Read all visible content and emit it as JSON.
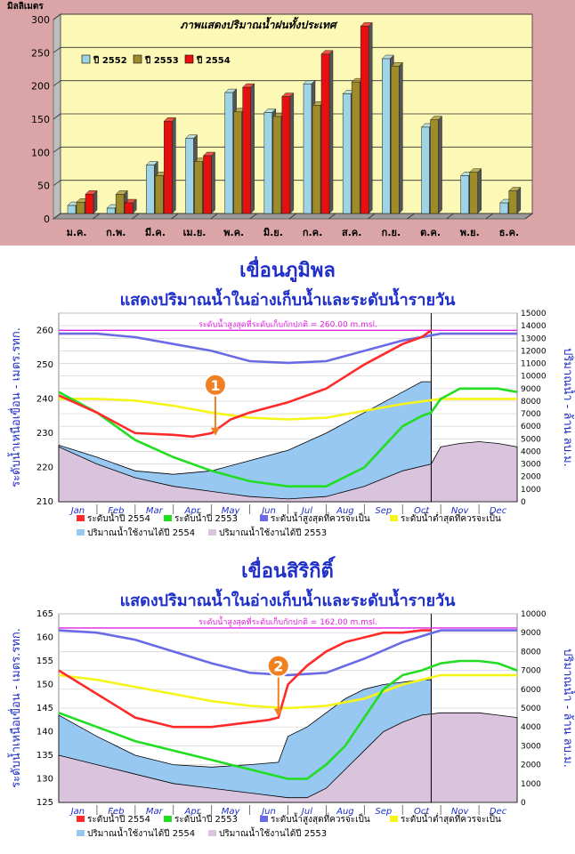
{
  "chart_data": [
    {
      "type": "bar",
      "title": "ภาพแสดงปริมาณน้ำฝนทั้งประเทศ",
      "ylabel": "มิลลิเมตร",
      "ylim": [
        0,
        300
      ],
      "yticks": [
        0,
        50,
        100,
        150,
        200,
        250,
        300
      ],
      "categories": [
        "ม.ค.",
        "ก.พ.",
        "มี.ค.",
        "เม.ย.",
        "พ.ค.",
        "มิ.ย.",
        "ก.ค.",
        "ส.ค.",
        "ก.ย.",
        "ต.ค.",
        "พ.ย.",
        "ธ.ค."
      ],
      "legend_position": "top-left",
      "series": [
        {
          "name": "ปี 2552",
          "color": "#9ed4e6",
          "values": [
            12,
            8,
            73,
            113,
            182,
            152,
            195,
            180,
            233,
            130,
            57,
            16
          ]
        },
        {
          "name": "ปี 2553",
          "color": "#9e8c2a",
          "values": [
            17,
            29,
            57,
            78,
            153,
            146,
            163,
            198,
            222,
            141,
            62,
            34
          ]
        },
        {
          "name": "ปี 2554",
          "color": "#e80f0f",
          "values": [
            29,
            16,
            139,
            87,
            190,
            176,
            240,
            282,
            null,
            null,
            null,
            null
          ]
        }
      ],
      "colors": {
        "plot_bg": "#fcf8b6",
        "page_bg": "#dba5a7"
      }
    },
    {
      "type": "line",
      "dam_name": "เขื่อนภูมิพล",
      "subtitle": "แสดงปริมาณน้ำในอ่างเก็บน้ำและระดับน้ำรายวัน",
      "ylabel_left": "ระดับน้ำเหนือเขื่อน - เมตร.รทก.",
      "ylabel_right": "ปริมาณน้ำ - ล้าน ลบ.ม.",
      "ylim_left": [
        210,
        265
      ],
      "yticks_left": [
        210,
        220,
        230,
        240,
        250,
        260
      ],
      "ylim_right": [
        0,
        15000
      ],
      "yticks_right": [
        0,
        1000,
        2000,
        3000,
        4000,
        5000,
        6000,
        7000,
        8000,
        9000,
        10000,
        11000,
        12000,
        13000,
        14000,
        15000
      ],
      "months": [
        "Jan",
        "Feb",
        "Mar",
        "Apr",
        "May",
        "Jun",
        "Jul",
        "Aug",
        "Sep",
        "Oct",
        "Nov",
        "Dec"
      ],
      "current_marker_month": 9.75,
      "max_line": {
        "value": 260,
        "label": "ระดับน้ำสูงสุดที่ระดับเก็บกักปกติ = 260.00 m.msl."
      },
      "annotation": {
        "label": "1",
        "x": 4.1,
        "y": 229
      },
      "series": [
        {
          "name": "ระดับน้ำปี 2554",
          "color": "#ff2a2a",
          "x": [
            0,
            1,
            2,
            3,
            3.5,
            4,
            4.5,
            5,
            6,
            7,
            8,
            9,
            9.5,
            9.75
          ],
          "y": [
            241,
            236,
            230,
            229.5,
            229,
            230,
            234,
            236,
            239,
            243,
            250,
            256,
            258,
            260
          ]
        },
        {
          "name": "ระดับน้ำปี 2553",
          "color": "#22dd22",
          "x": [
            0,
            1,
            2,
            3,
            4,
            5,
            6,
            7,
            8,
            8.5,
            9,
            9.5,
            9.75,
            10,
            10.5,
            11,
            11.5,
            12
          ],
          "y": [
            242,
            236,
            228,
            223,
            219,
            216,
            214.5,
            214.5,
            220,
            226,
            232,
            235,
            236,
            240,
            243,
            243,
            243,
            242
          ]
        },
        {
          "name": "ระดับน้ำสูงสุดที่ควรจะเป็น",
          "color": "#6a6ae6",
          "x": [
            0,
            1,
            2,
            3,
            4,
            5,
            6,
            7,
            8,
            9,
            10,
            11,
            12
          ],
          "y": [
            259,
            259,
            258,
            256,
            254,
            251,
            250.5,
            251,
            254,
            257,
            259,
            259,
            259
          ]
        },
        {
          "name": "ระดับน้ำต่ำสุดที่ควรจะเป็น",
          "color": "#f5f51a",
          "x": [
            0,
            1,
            2,
            3,
            4,
            5,
            6,
            7,
            8,
            9,
            10,
            11,
            12
          ],
          "y": [
            240,
            240,
            239.5,
            238,
            236,
            234.5,
            234,
            234.5,
            236.5,
            238.5,
            240,
            240,
            240
          ]
        },
        {
          "name": "ปริมาณน้ำใช้งานได้ปี 2554",
          "color": "#96c8f2",
          "x": [
            0,
            1,
            2,
            3,
            4,
            5,
            6,
            7,
            8,
            9,
            9.5,
            9.75
          ],
          "y": [
            226.5,
            223,
            219,
            218,
            219,
            222,
            225,
            230,
            236,
            242,
            245,
            245
          ]
        },
        {
          "name": "ปริมาณน้ำใช้งานได้ปี 2553",
          "color": "#d9c3dd",
          "x": [
            0,
            1,
            2,
            3,
            4,
            5,
            6,
            7,
            8,
            9,
            9.75,
            10,
            10.5,
            11,
            11.5,
            12
          ],
          "y": [
            226,
            221,
            217,
            214.5,
            213,
            211.5,
            210.8,
            211.5,
            214.5,
            219,
            221,
            226,
            227,
            227.5,
            227,
            226
          ]
        }
      ]
    },
    {
      "type": "line",
      "dam_name": "เขื่อนสิริกิติ์",
      "subtitle": "แสดงปริมาณน้ำในอ่างเก็บน้ำและระดับน้ำรายวัน",
      "ylabel_left": "ระดับน้ำเหนือเขื่อน - เมตร.รทก.",
      "ylabel_right": "ปริมาณน้ำ - ล้าน ลบ.ม.",
      "ylim_left": [
        125,
        165
      ],
      "yticks_left": [
        125,
        130,
        135,
        140,
        145,
        150,
        155,
        160,
        165
      ],
      "ylim_right": [
        0,
        10000
      ],
      "yticks_right": [
        0,
        1000,
        2000,
        3000,
        4000,
        5000,
        6000,
        7000,
        8000,
        9000,
        10000
      ],
      "months": [
        "Jan",
        "Feb",
        "Mar",
        "Apr",
        "May",
        "Jun",
        "Jul",
        "Aug",
        "Sep",
        "Oct",
        "Nov",
        "Dec"
      ],
      "current_marker_month": 9.75,
      "max_line": {
        "value": 162,
        "label": "ระดับน้ำสูงสุดที่ระดับเก็บกักปกติ = 162.00 m.msl."
      },
      "annotation": {
        "label": "2",
        "x": 5.75,
        "y": 143
      },
      "series": [
        {
          "name": "ระดับน้ำปี 2554",
          "color": "#ff2a2a",
          "x": [
            0,
            1,
            2,
            3,
            4,
            5,
            5.5,
            5.75,
            6,
            6.5,
            7,
            7.5,
            8,
            8.5,
            9,
            9.5,
            9.75
          ],
          "y": [
            153,
            148,
            143,
            141,
            141,
            142,
            142.5,
            143,
            150,
            154,
            157,
            159,
            160,
            161,
            161,
            161.5,
            161.5
          ]
        },
        {
          "name": "ระดับน้ำปี 2553",
          "color": "#22dd22",
          "x": [
            0,
            1,
            2,
            3,
            4,
            5,
            6,
            6.5,
            7,
            7.5,
            8,
            8.5,
            9,
            9.5,
            10,
            10.5,
            11,
            11.5,
            12
          ],
          "y": [
            144,
            141,
            138,
            136,
            134,
            132,
            130,
            130,
            133,
            137,
            143,
            149,
            152,
            153,
            154.5,
            155,
            155,
            154.5,
            153
          ]
        },
        {
          "name": "ระดับน้ำสูงสุดที่ควรจะเป็น",
          "color": "#6a6ae6",
          "x": [
            0,
            1,
            2,
            3,
            4,
            5,
            6,
            7,
            8,
            9,
            10,
            11,
            12
          ],
          "y": [
            161.5,
            161,
            159.5,
            157,
            154.5,
            152.5,
            152,
            152.5,
            155.5,
            159,
            161.5,
            161.5,
            161.5
          ]
        },
        {
          "name": "ระดับน้ำต่ำสุดที่ควรจะเป็น",
          "color": "#f5f51a",
          "x": [
            0,
            1,
            2,
            3,
            4,
            5,
            6,
            7,
            8,
            9,
            10,
            11,
            12
          ],
          "y": [
            152,
            151,
            149.5,
            148,
            146.5,
            145.5,
            145,
            145.5,
            147,
            150,
            152,
            152,
            152
          ]
        },
        {
          "name": "ปริมาณน้ำใช้งานได้ปี 2554",
          "color": "#96c8f2",
          "x": [
            0,
            1,
            2,
            3,
            4,
            5,
            5.75,
            6,
            6.5,
            7,
            7.5,
            8,
            8.5,
            9,
            9.5,
            9.75
          ],
          "y": [
            143.5,
            139,
            135,
            133,
            132.5,
            133,
            133.5,
            139,
            141,
            144,
            147,
            149,
            150,
            150.5,
            151,
            151
          ]
        },
        {
          "name": "ปริมาณน้ำใช้งานได้ปี 2553",
          "color": "#d9c3dd",
          "x": [
            0,
            1,
            2,
            3,
            4,
            5,
            6,
            6.5,
            7,
            7.5,
            8,
            8.5,
            9,
            9.5,
            10,
            10.5,
            11,
            11.5,
            12
          ],
          "y": [
            135,
            133,
            131,
            129,
            128,
            127,
            126,
            126,
            128,
            132,
            136,
            140,
            142,
            143.5,
            144,
            144,
            144,
            143.5,
            143
          ]
        }
      ]
    }
  ]
}
